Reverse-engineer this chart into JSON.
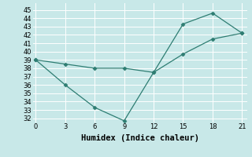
{
  "line1_x": [
    0,
    3,
    6,
    9,
    12,
    15,
    18,
    21
  ],
  "line1_y": [
    39,
    38.5,
    38.0,
    38.0,
    37.5,
    43.3,
    44.6,
    42.2
  ],
  "line2_x": [
    0,
    3,
    6,
    9,
    12,
    15,
    18,
    21
  ],
  "line2_y": [
    39,
    36.0,
    33.3,
    31.7,
    37.5,
    39.7,
    41.5,
    42.2
  ],
  "line_color": "#2e7d72",
  "bg_color": "#c8e8e8",
  "grid_color": "#b0d8d8",
  "xlabel": "Humidex (Indice chaleur)",
  "xlabel_fontsize": 7.5,
  "xticks": [
    0,
    3,
    6,
    9,
    12,
    15,
    18,
    21
  ],
  "yticks": [
    32,
    33,
    34,
    35,
    36,
    37,
    38,
    39,
    40,
    41,
    42,
    43,
    44,
    45
  ],
  "ylim": [
    31.5,
    45.8
  ],
  "xlim": [
    -0.3,
    21.5
  ]
}
